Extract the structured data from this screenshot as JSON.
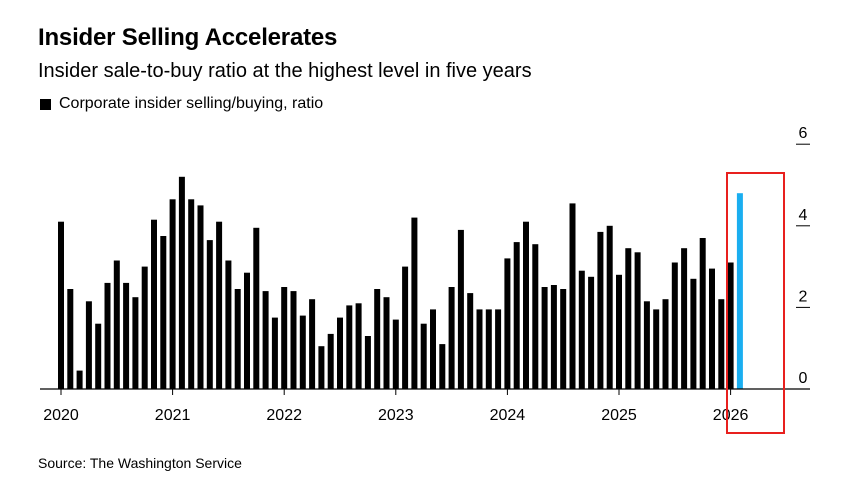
{
  "header": {
    "title": "Insider Selling Accelerates",
    "subtitle": "Insider sale-to-buy ratio at the highest level in five years"
  },
  "legend": {
    "label": "Corporate insider selling/buying, ratio"
  },
  "source": "Source: The Washington Service",
  "colors": {
    "bar": "#000000",
    "highlight_bar": "#1AAEF0",
    "highlight_box": "#E8201E"
  },
  "chart_data": {
    "type": "bar",
    "title": "Insider Selling Accelerates",
    "subtitle": "Insider sale-to-buy ratio at the highest level in five years",
    "xlabel": "",
    "ylabel": "Corporate insider selling/buying, ratio",
    "ylim": [
      0,
      6
    ],
    "yticks": [
      0,
      2,
      4,
      6
    ],
    "xticks": [
      "2020",
      "2021",
      "2022",
      "2023",
      "2024",
      "2025",
      "2026"
    ],
    "start": "2020-01",
    "frequency": "monthly",
    "series": [
      {
        "name": "Corporate insider selling/buying, ratio",
        "values": [
          4.1,
          2.45,
          0.45,
          2.15,
          1.6,
          2.6,
          3.15,
          2.6,
          2.25,
          3.0,
          4.15,
          3.75,
          4.65,
          5.2,
          4.65,
          4.5,
          3.65,
          4.1,
          3.15,
          2.45,
          2.85,
          3.95,
          2.4,
          1.75,
          2.5,
          2.4,
          1.8,
          2.2,
          1.05,
          1.35,
          1.75,
          2.05,
          2.1,
          1.3,
          2.45,
          2.25,
          1.7,
          3.0,
          4.2,
          1.6,
          1.95,
          1.1,
          2.5,
          3.9,
          2.35,
          1.95,
          1.95,
          1.95,
          3.2,
          3.6,
          4.1,
          3.55,
          2.5,
          2.55,
          2.45,
          4.55,
          2.9,
          2.75,
          3.85,
          4.0,
          2.8,
          3.45,
          3.35,
          2.15,
          1.95,
          2.2,
          3.1,
          3.45,
          2.7,
          3.7,
          2.95,
          2.2,
          3.1,
          4.8
        ]
      }
    ],
    "highlight": {
      "index": 73,
      "label": "2026",
      "color": "#1AAEF0"
    }
  }
}
